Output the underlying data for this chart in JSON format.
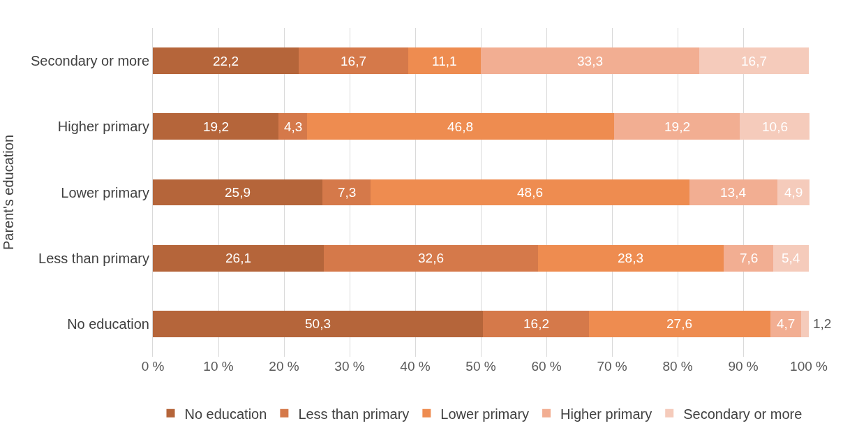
{
  "chart_data": {
    "type": "bar",
    "orientation": "horizontal",
    "stacked": true,
    "ylabel": "Parent's education",
    "categories": [
      "Secondary or more",
      "Higher primary",
      "Lower primary",
      "Less than primary",
      "No education"
    ],
    "series": [
      {
        "name": "No education",
        "color": "#b5653a",
        "values": [
          22.2,
          19.2,
          25.9,
          26.1,
          50.3
        ],
        "value_labels": [
          "22,2",
          "19,2",
          "25,9",
          "26,1",
          "50,3"
        ]
      },
      {
        "name": "Less than primary",
        "color": "#d5794a",
        "values": [
          16.7,
          4.3,
          7.3,
          32.6,
          16.2
        ],
        "value_labels": [
          "16,7",
          "4,3",
          "7,3",
          "32,6",
          "16,2"
        ]
      },
      {
        "name": "Lower primary",
        "color": "#ee8c50",
        "values": [
          11.1,
          46.8,
          48.6,
          28.3,
          27.6
        ],
        "value_labels": [
          "11,1",
          "46,8",
          "48,6",
          "28,3",
          "27,6"
        ]
      },
      {
        "name": "Higher primary",
        "color": "#f2ae92",
        "values": [
          33.3,
          19.2,
          13.4,
          7.6,
          4.7
        ],
        "value_labels": [
          "33,3",
          "19,2",
          "13,4",
          "7,6",
          "4,7"
        ]
      },
      {
        "name": "Secondary or more",
        "color": "#f5cbbb",
        "values": [
          16.7,
          10.6,
          4.9,
          5.4,
          1.2
        ],
        "value_labels": [
          "16,7",
          "10,6",
          "4,9",
          "5,4",
          "1,2"
        ]
      }
    ],
    "xlim": [
      0,
      100.1
    ],
    "xticks": [
      {
        "value": 0,
        "label": "0 %"
      },
      {
        "value": 10,
        "label": "10 %"
      },
      {
        "value": 20,
        "label": "20 %"
      },
      {
        "value": 30,
        "label": "30 %"
      },
      {
        "value": 40,
        "label": "40 %"
      },
      {
        "value": 50,
        "label": "50 %"
      },
      {
        "value": 60,
        "label": "60 %"
      },
      {
        "value": 70,
        "label": "70 %"
      },
      {
        "value": 80,
        "label": "80 %"
      },
      {
        "value": 90,
        "label": "90 %"
      },
      {
        "value": 100,
        "label": "100 %"
      }
    ],
    "grid": "x",
    "legend": "bottom"
  }
}
